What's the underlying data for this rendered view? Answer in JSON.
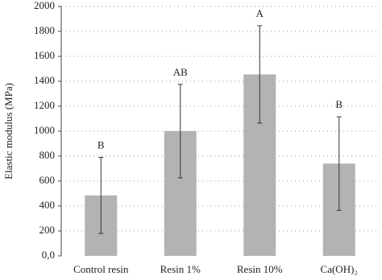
{
  "chart_data": {
    "type": "bar",
    "y_label": "Elastic modulus (MPa)",
    "categories": [
      "Control resin",
      "Resin 1%",
      "Resin 10%",
      "Ca(OH)₂"
    ],
    "values": [
      485,
      1000,
      1455,
      740
    ],
    "errors": [
      305,
      375,
      390,
      375
    ],
    "annotations": [
      "B",
      "AB",
      "A",
      "B"
    ],
    "color": "#b3b3b3",
    "error_color": "#333333",
    "ylim": [
      0,
      2000
    ],
    "yticks": [
      {
        "value": 0,
        "label": "0,0"
      },
      200,
      400,
      600,
      800,
      1000,
      1200,
      1400,
      1600,
      1800,
      2000
    ],
    "grid": true
  }
}
